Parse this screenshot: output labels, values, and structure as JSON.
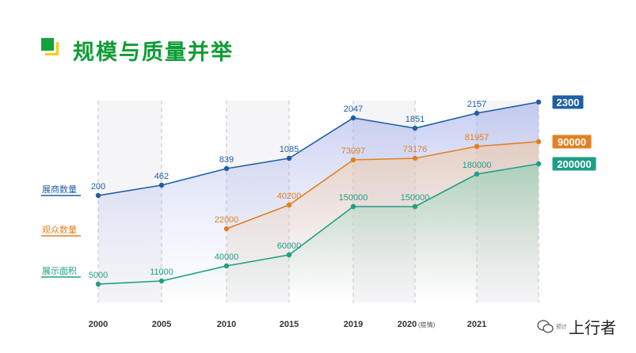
{
  "title": "规模与质量并举",
  "chart_data": {
    "type": "line",
    "categories": [
      "2000",
      "2005",
      "2010",
      "2015",
      "2019",
      "2020",
      "2021",
      ""
    ],
    "category_labels": [
      "2000",
      "2005",
      "2010",
      "2015",
      "2019",
      "2020",
      "2021",
      ""
    ],
    "category_note": {
      "index": 5,
      "text": "(疫情)"
    },
    "series": [
      {
        "name": "展商数量",
        "color": "#1f5fa6",
        "values": [
          200,
          462,
          839,
          1085,
          2047,
          1851,
          2157,
          2300
        ],
        "labels": [
          "200",
          "462",
          "839",
          "1085",
          "2047",
          "1851",
          "2157",
          ""
        ],
        "end_badge": "2300"
      },
      {
        "name": "观众数量",
        "color": "#e37f23",
        "values": [
          null,
          null,
          22000,
          40200,
          73097,
          73176,
          81957,
          90000
        ],
        "labels": [
          "",
          "",
          "22000",
          "40200",
          "73097",
          "73176",
          "81957",
          ""
        ],
        "end_badge": "90000"
      },
      {
        "name": "展示面积",
        "color": "#1e9e86",
        "values": [
          5000,
          11000,
          40000,
          60000,
          150000,
          150000,
          180000,
          200000
        ],
        "labels": [
          "5000",
          "11000",
          "40000",
          "60000",
          "150000",
          "150000",
          "180000",
          ""
        ],
        "end_badge": "200000"
      }
    ]
  },
  "watermark": {
    "small_text": "预计",
    "brand": "上行者"
  }
}
